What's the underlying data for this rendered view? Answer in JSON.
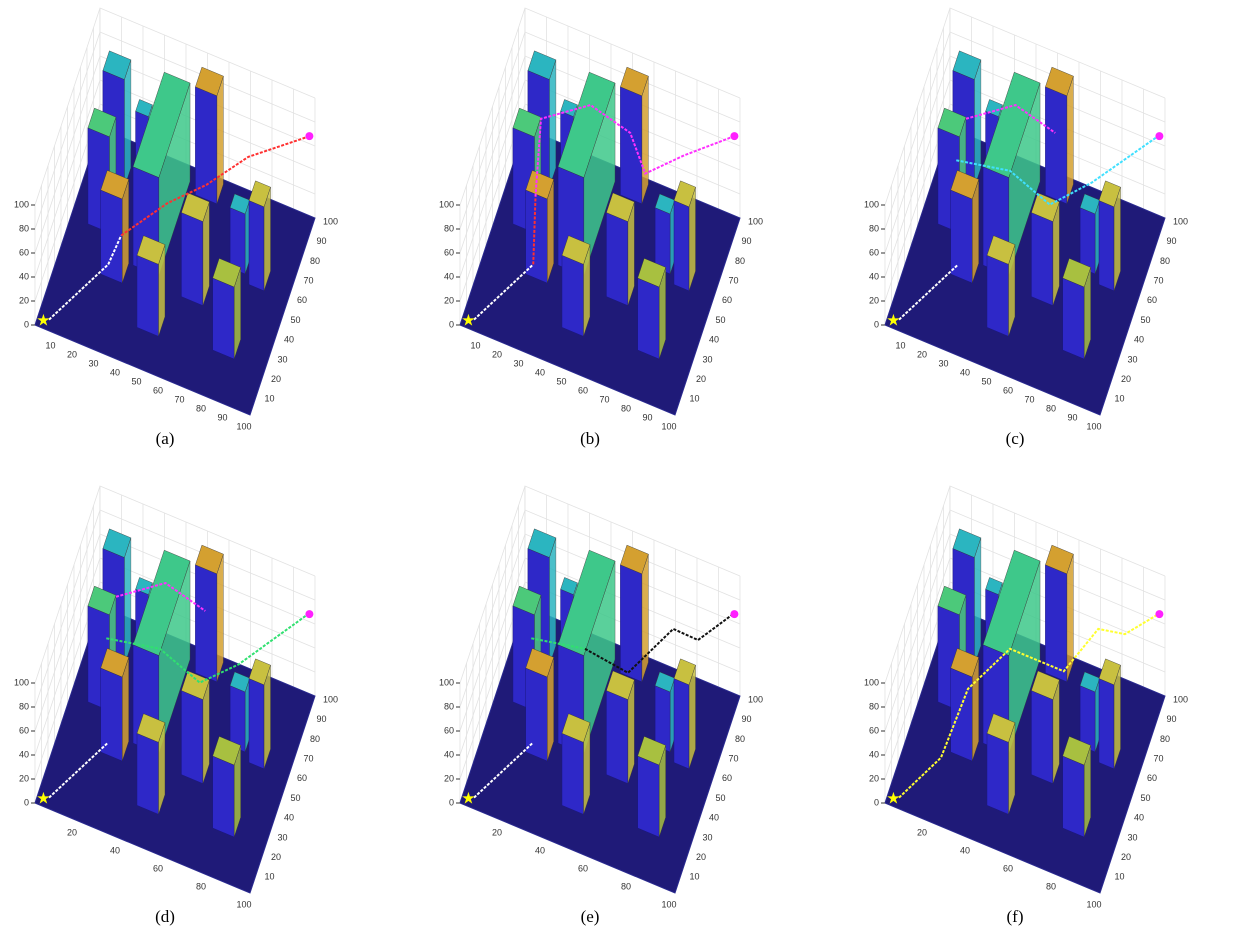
{
  "panels": [
    {
      "caption": "(a)",
      "zticks": [
        0,
        20,
        40,
        60,
        80,
        100
      ],
      "xticks": [
        10,
        20,
        30,
        40,
        50,
        60,
        70,
        80,
        90,
        100
      ],
      "yticks": [
        10,
        20,
        30,
        40,
        50,
        60,
        70,
        80,
        90,
        100
      ]
    },
    {
      "caption": "(b)",
      "zticks": [
        0,
        20,
        40,
        60,
        80,
        100
      ],
      "xticks": [
        10,
        20,
        30,
        40,
        50,
        60,
        70,
        80,
        90,
        100
      ],
      "yticks": [
        10,
        20,
        30,
        40,
        50,
        60,
        70,
        80,
        90,
        100
      ]
    },
    {
      "caption": "(c)",
      "zticks": [
        0,
        20,
        40,
        60,
        80,
        100
      ],
      "xticks": [
        10,
        20,
        30,
        40,
        50,
        60,
        70,
        80,
        90,
        100
      ],
      "yticks": [
        10,
        20,
        30,
        40,
        50,
        60,
        70,
        80,
        90,
        100
      ]
    },
    {
      "caption": "(d)",
      "zticks": [
        0,
        20,
        40,
        60,
        80,
        100
      ],
      "xticks": [
        20,
        40,
        60,
        80,
        100
      ],
      "yticks": [
        10,
        20,
        30,
        40,
        50,
        60,
        70,
        80,
        90,
        100
      ]
    },
    {
      "caption": "(e)",
      "zticks": [
        0,
        20,
        40,
        60,
        80,
        100
      ],
      "xticks": [
        20,
        40,
        60,
        80,
        100
      ],
      "yticks": [
        10,
        20,
        30,
        40,
        50,
        60,
        70,
        80,
        90,
        100
      ]
    },
    {
      "caption": "(f)",
      "zticks": [
        0,
        20,
        40,
        60,
        80,
        100
      ],
      "xticks": [
        20,
        40,
        60,
        80,
        100
      ],
      "yticks": [
        10,
        20,
        30,
        40,
        50,
        60,
        70,
        80,
        90,
        100
      ]
    }
  ]
}
